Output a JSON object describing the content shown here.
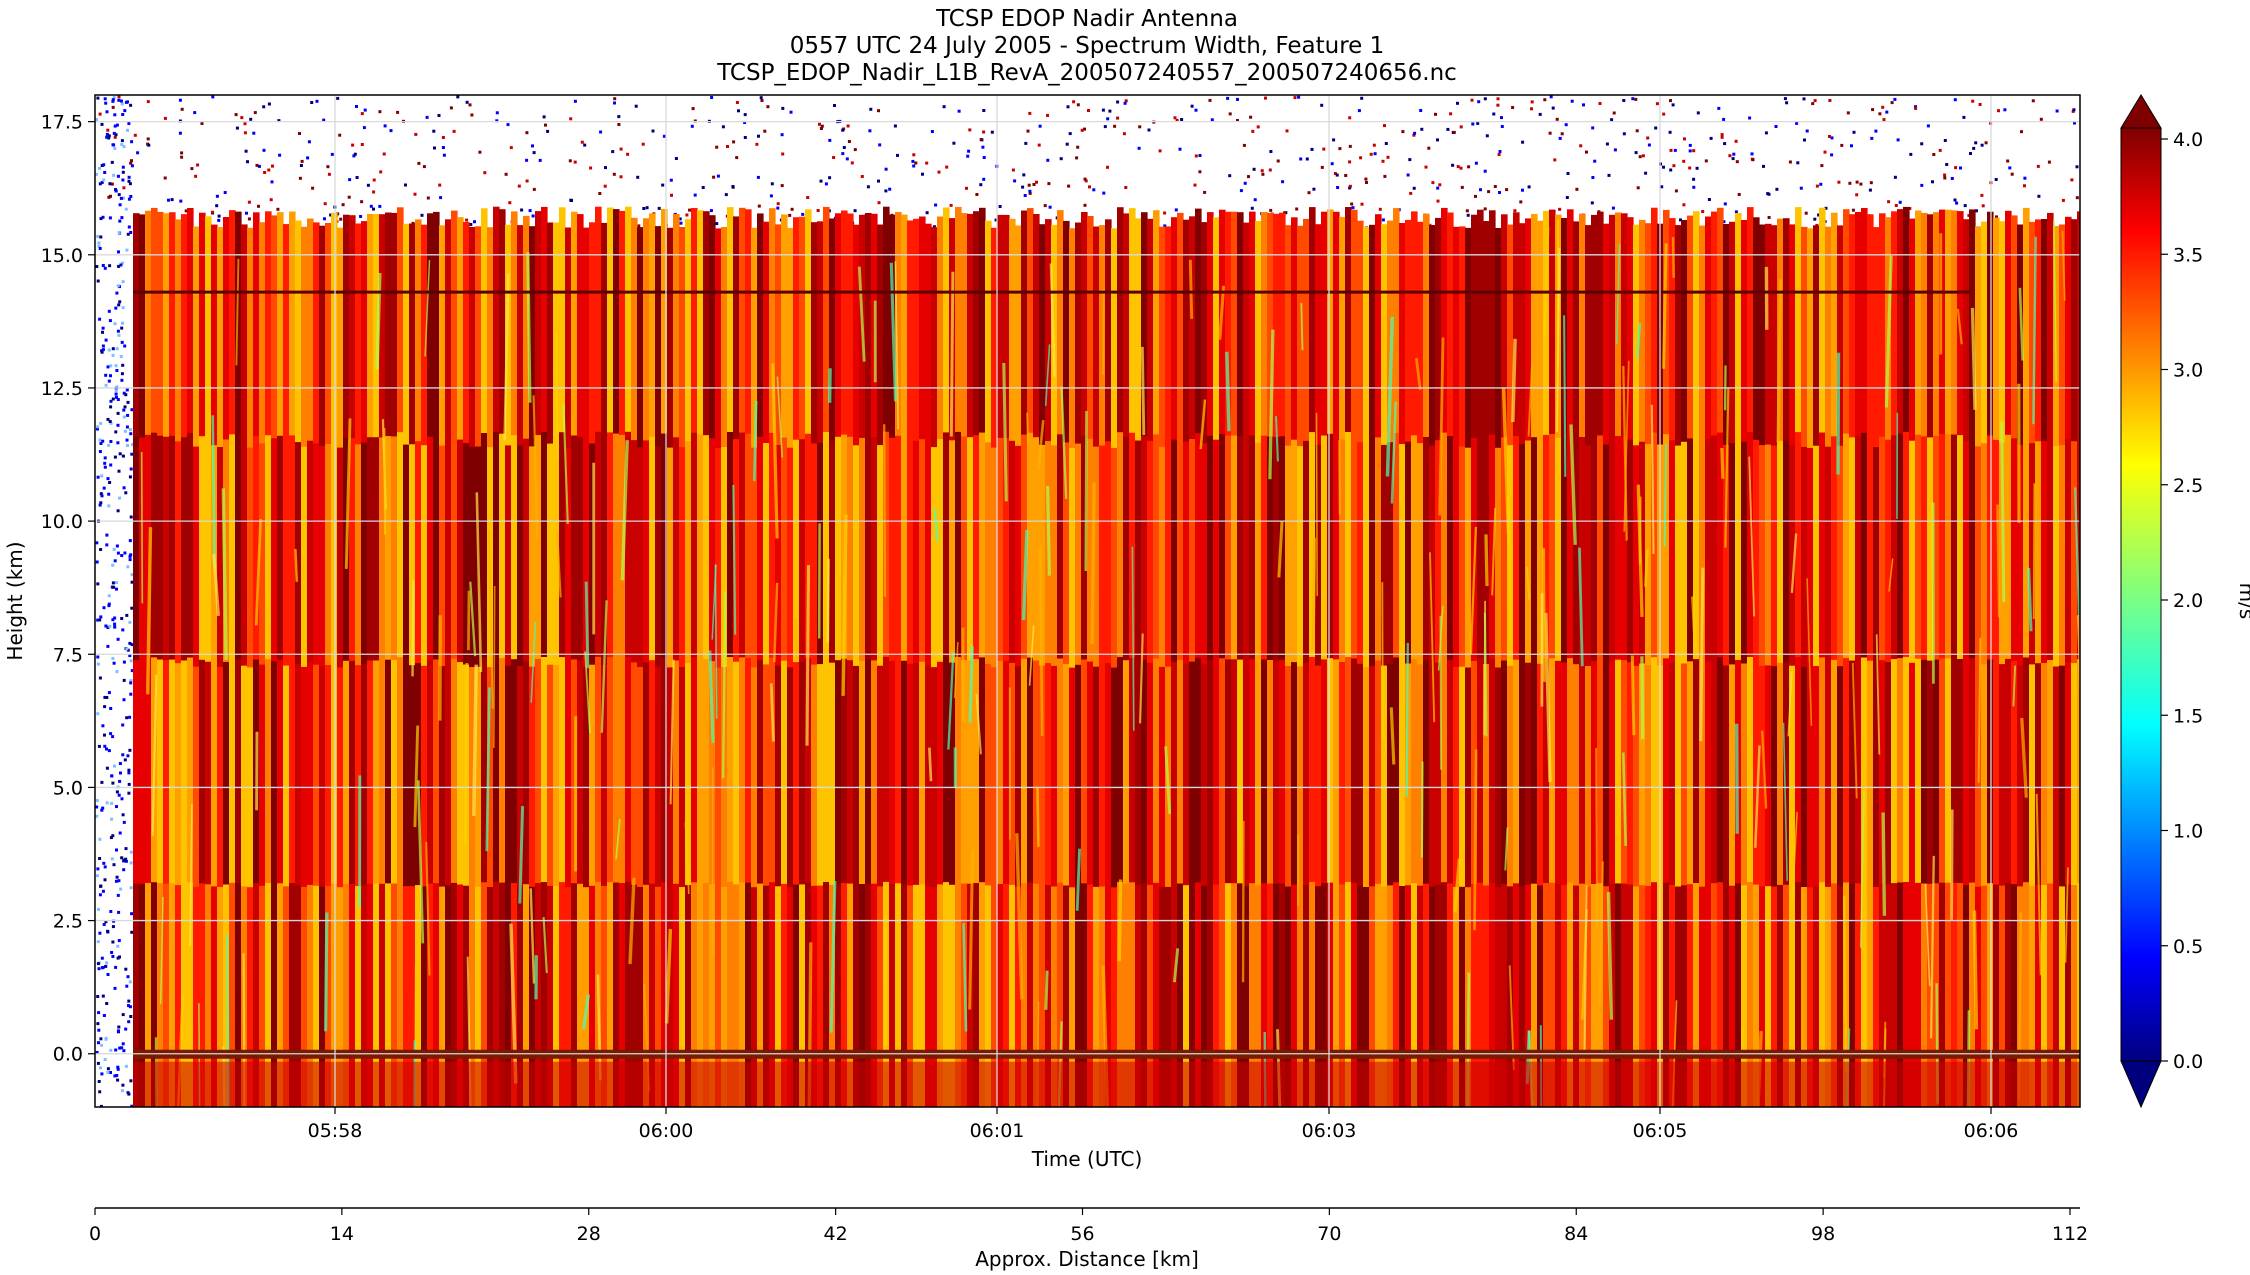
{
  "chart_data": {
    "type": "heatmap",
    "title_lines": [
      "TCSP EDOP Nadir Antenna",
      "0557 UTC 24 July 2005 - Spectrum Width, Feature 1",
      "TCSP_EDOP_Nadir_L1B_RevA_200507240557_200507240656.nc"
    ],
    "xlabel": "Time (UTC)",
    "ylabel": "Height (km)",
    "x_ticks": [
      "05:58",
      "06:00",
      "06:01",
      "06:03",
      "06:05",
      "06:06"
    ],
    "y_ticks": [
      "0.0",
      "2.5",
      "5.0",
      "7.5",
      "10.0",
      "12.5",
      "15.0",
      "17.5"
    ],
    "ylim": [
      -1.0,
      18.0
    ],
    "grid": true,
    "secondary_x_axis": {
      "label": "Approx. Distance [km]",
      "ticks": [
        "0",
        "14",
        "28",
        "42",
        "56",
        "70",
        "84",
        "98",
        "112"
      ],
      "range": [
        0,
        112
      ]
    },
    "colorbar": {
      "label": "m/s",
      "range": [
        0.0,
        4.0
      ],
      "ticks": [
        "0.0",
        "0.5",
        "1.0",
        "1.5",
        "2.0",
        "2.5",
        "3.0",
        "3.5",
        "4.0"
      ],
      "colormap": "jet",
      "extend": "both"
    },
    "features": {
      "echo_top_km": 15.7,
      "surface_km": 0.0,
      "horizontal_line_km": 14.3
    }
  },
  "colors": {
    "jet_stops": [
      "#00007f",
      "#0000ff",
      "#007fff",
      "#00ffff",
      "#7fff7f",
      "#ffff00",
      "#ff7f00",
      "#ff0000",
      "#7f0000"
    ],
    "grid": "#d9d9d9",
    "frame": "#000000"
  }
}
